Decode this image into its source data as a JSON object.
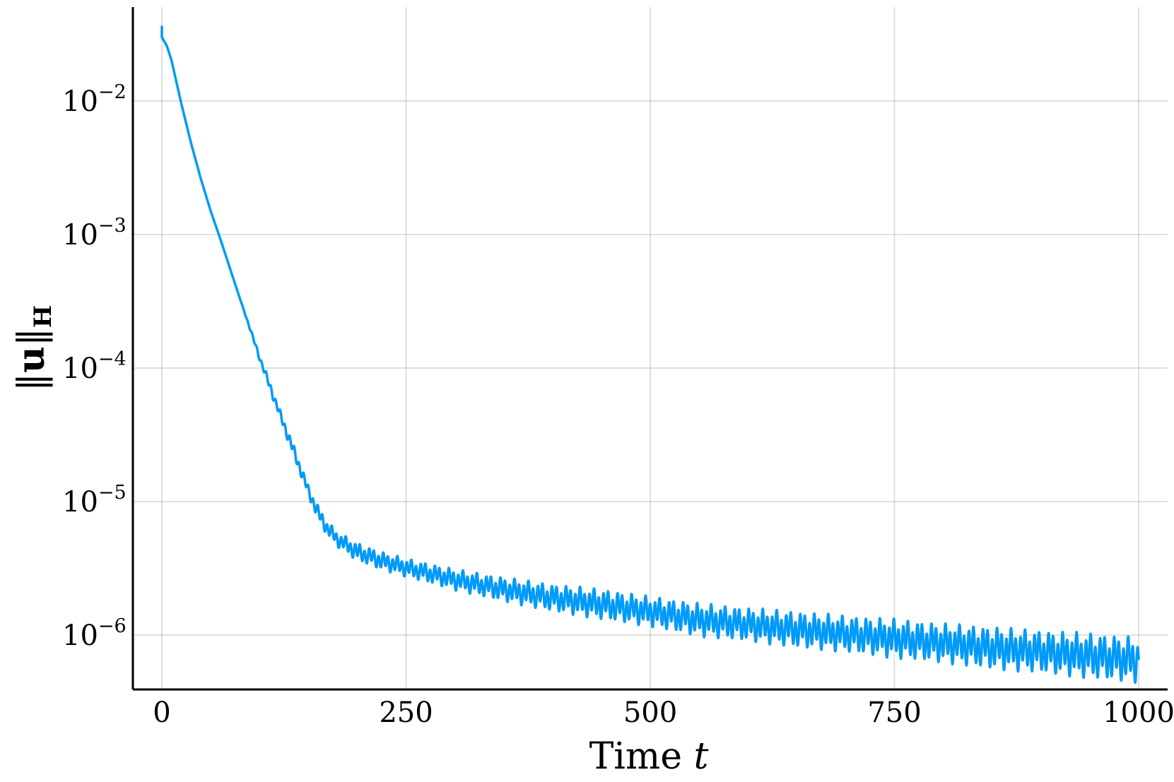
{
  "chart_data": {
    "type": "line",
    "title": "",
    "xlabel": "Time",
    "xlabel_var": "t",
    "ylabel_norm": "u",
    "ylabel_sub": "H",
    "yscale": "log",
    "xlim": [
      0,
      1000
    ],
    "ylim": [
      4e-07,
      0.05
    ],
    "grid": true,
    "legend": "none",
    "x_ticks": [
      {
        "value": 0,
        "label": "0"
      },
      {
        "value": 250,
        "label": "250"
      },
      {
        "value": 500,
        "label": "500"
      },
      {
        "value": 750,
        "label": "750"
      },
      {
        "value": 1000,
        "label": "1000"
      }
    ],
    "y_ticks": [
      {
        "value": 0.01,
        "base": "10",
        "exp": "−2"
      },
      {
        "value": 0.001,
        "base": "10",
        "exp": "−3"
      },
      {
        "value": 0.0001,
        "base": "10",
        "exp": "−4"
      },
      {
        "value": 1e-05,
        "base": "10",
        "exp": "−5"
      },
      {
        "value": 1e-06,
        "base": "10",
        "exp": "−6"
      }
    ],
    "series": [
      {
        "color": "#009AF9",
        "x": [
          0,
          5,
          10,
          20,
          30,
          40,
          50,
          60,
          70,
          80,
          90,
          100,
          110,
          120,
          130,
          140,
          150,
          160,
          170,
          180,
          200,
          225,
          250,
          300,
          350,
          400,
          450,
          500,
          550,
          600,
          650,
          700,
          750,
          800,
          850,
          900,
          950,
          1000
        ],
        "y": [
          0.03,
          0.026,
          0.02,
          0.0095,
          0.0048,
          0.0026,
          0.0015,
          0.00092,
          0.00055,
          0.00033,
          0.0002,
          0.00012,
          7.5e-05,
          4.7e-05,
          3e-05,
          1.9e-05,
          1.2e-05,
          8.2e-06,
          6.2e-06,
          5.2e-06,
          4.2e-06,
          3.6e-06,
          3.2e-06,
          2.6e-06,
          2.2e-06,
          1.9e-06,
          1.7e-06,
          1.5e-06,
          1.3e-06,
          1.2e-06,
          1.1e-06,
          1.02e-06,
          9.4e-07,
          8.7e-07,
          8e-07,
          7.5e-07,
          7e-07,
          6.5e-07
        ],
        "oscillation_amplitude": [
          0.0,
          0.0,
          0.0,
          0.0,
          0.0,
          0.0,
          0.0,
          0.0,
          0.0,
          0.0,
          0.01,
          0.02,
          0.03,
          0.03,
          0.04,
          0.04,
          0.04,
          0.05,
          0.05,
          0.05,
          0.06,
          0.06,
          0.06,
          0.07,
          0.08,
          0.09,
          0.1,
          0.1,
          0.11,
          0.11,
          0.12,
          0.12,
          0.13,
          0.13,
          0.14,
          0.14,
          0.15,
          0.15
        ]
      }
    ]
  }
}
